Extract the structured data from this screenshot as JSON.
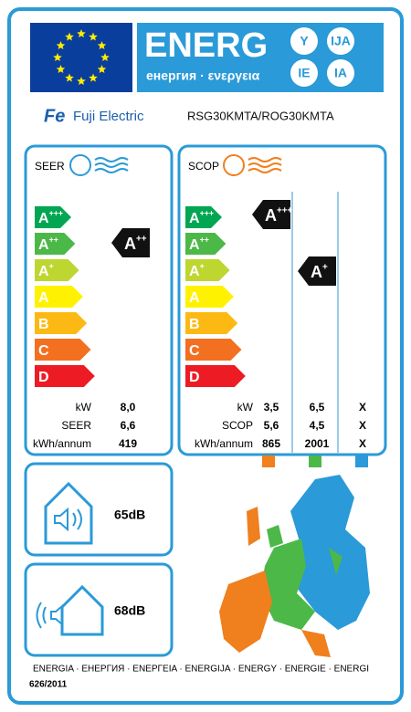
{
  "header": {
    "title": "ENERG",
    "subtitle": "енергия · ενεργεια",
    "badges": [
      "Y",
      "IJA",
      "IE",
      "IA"
    ]
  },
  "brand": "Fuji Electric",
  "model": "RSG30KMTA/ROG30KMTA",
  "scale": [
    {
      "letter": "A",
      "sup": "+++"
    },
    {
      "letter": "A",
      "sup": "++"
    },
    {
      "letter": "A",
      "sup": "+"
    },
    {
      "letter": "A"
    },
    {
      "letter": "B"
    },
    {
      "letter": "C"
    },
    {
      "letter": "D"
    }
  ],
  "cooling": {
    "label": "SEER",
    "rating": {
      "letter": "A",
      "sup": "++"
    },
    "rows": [
      [
        "kW",
        "8,0"
      ],
      [
        "SEER",
        "6,6"
      ],
      [
        "kWh/annum",
        "419"
      ]
    ]
  },
  "heating": {
    "label": "SCOP",
    "ratings": [
      {
        "letter": "A",
        "sup": "+++"
      },
      {
        "letter": "A",
        "sup": "+"
      }
    ],
    "rows": [
      [
        "kW",
        "3,5",
        "6,5",
        "X"
      ],
      [
        "SCOP",
        "5,6",
        "4,5",
        "X"
      ],
      [
        "kWh/annum",
        "865",
        "2001",
        "X"
      ]
    ]
  },
  "noise": {
    "indoor": "65dB",
    "outdoor": "68dB"
  },
  "footer": {
    "languages": "ENERGIA · ЕНЕРГИЯ · ΕΝΕΡΓΕΙΑ · ENERGIJA · ENERGY · ENERGIE · ENERGI",
    "regulation": "626/2011"
  }
}
